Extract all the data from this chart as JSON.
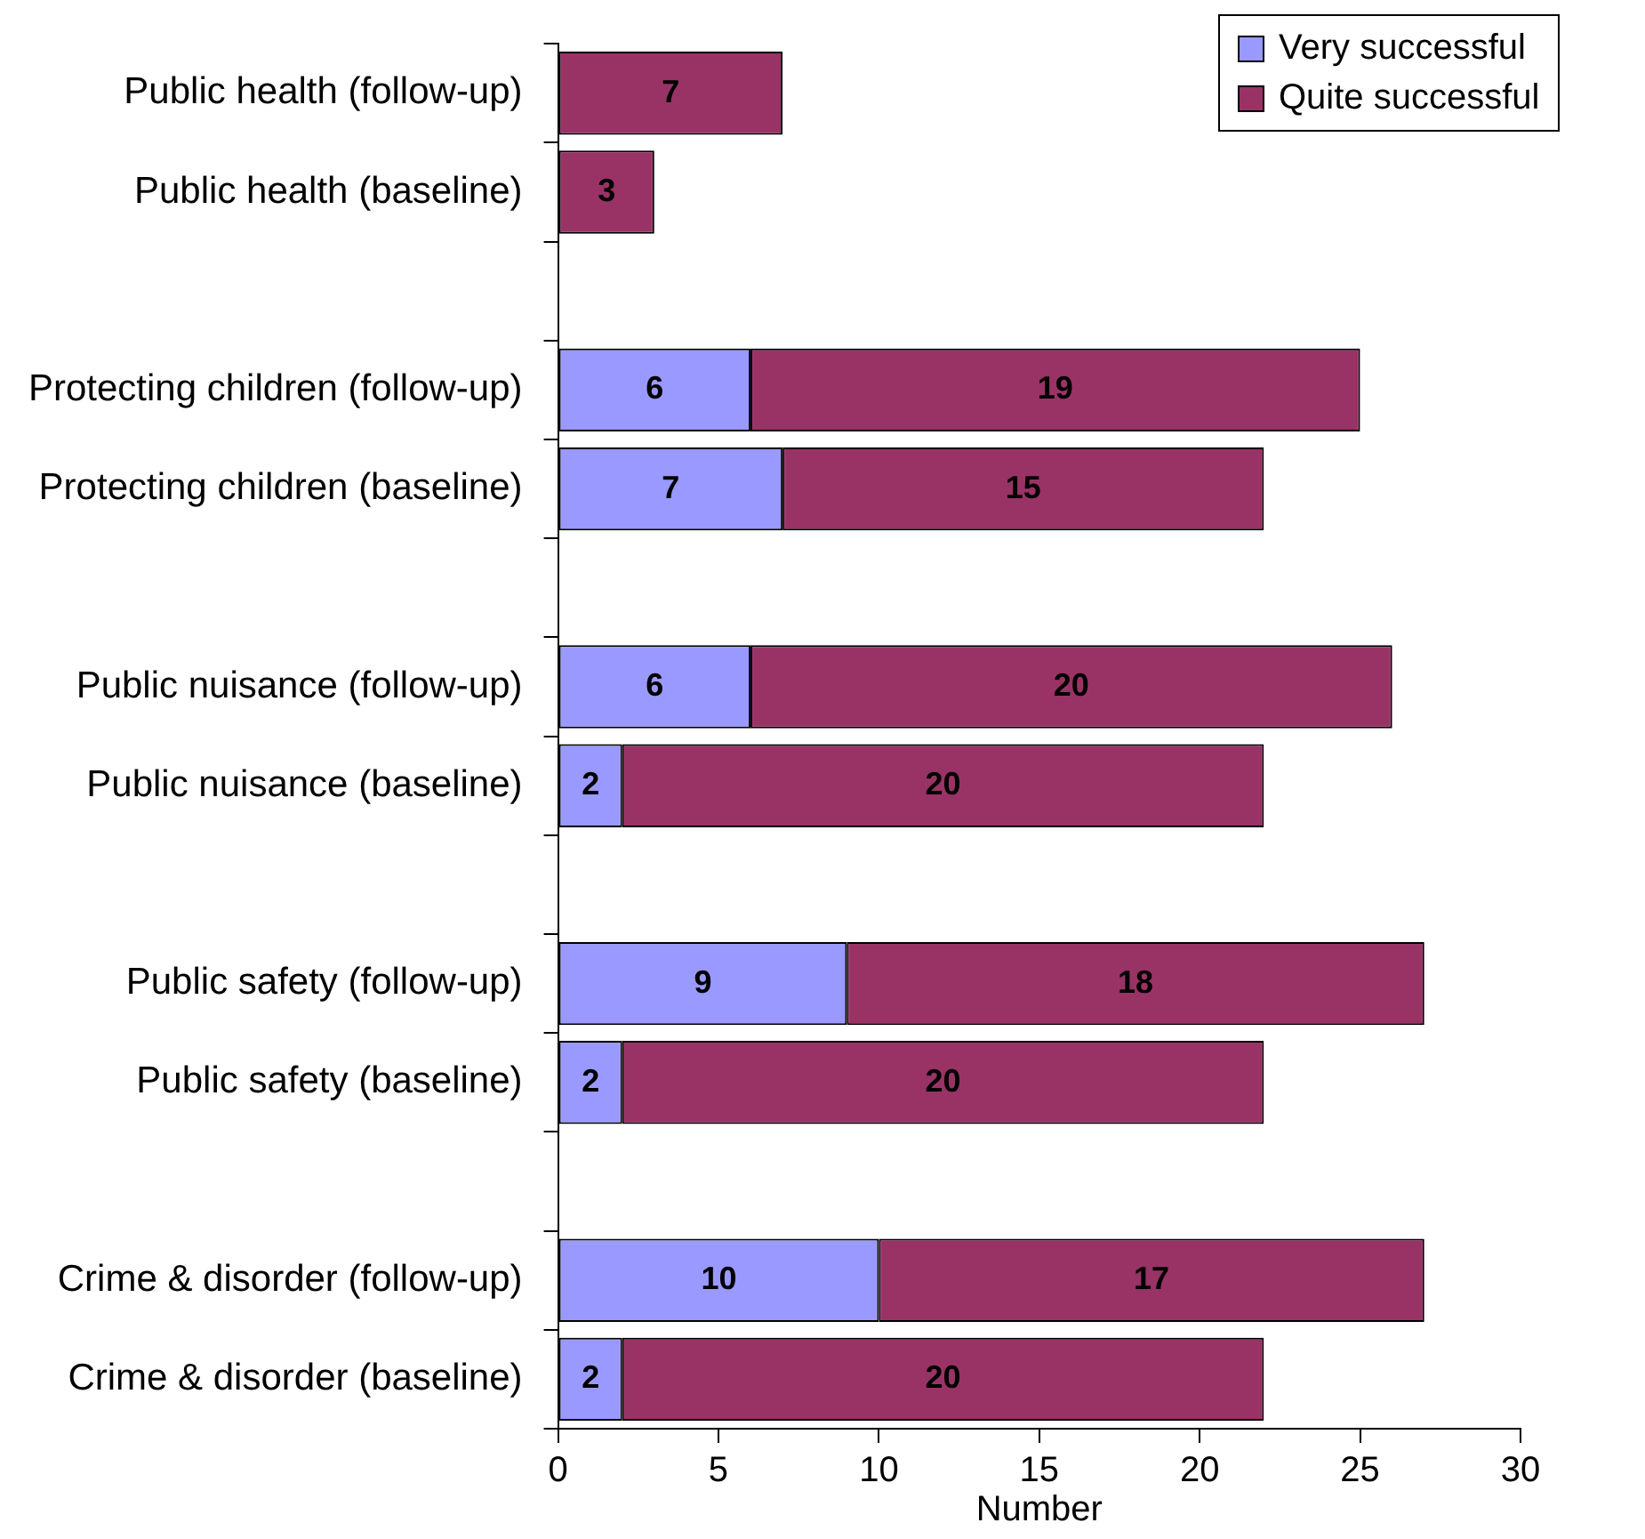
{
  "chart_data": {
    "type": "bar",
    "orientation": "horizontal",
    "stacked": true,
    "xlabel": "Number",
    "categories": [
      "Public health (follow-up)",
      "Public health (baseline)",
      null,
      "Protecting children (follow-up)",
      "Protecting children (baseline)",
      null,
      "Public nuisance (follow-up)",
      "Public nuisance (baseline)",
      null,
      "Public safety (follow-up)",
      "Public safety (baseline)",
      null,
      "Crime & disorder (follow-up)",
      "Crime & disorder (baseline)"
    ],
    "series": [
      {
        "name": "Very successful",
        "color": "#9999ff",
        "values": [
          null,
          null,
          null,
          6,
          7,
          null,
          6,
          2,
          null,
          9,
          2,
          null,
          10,
          2
        ]
      },
      {
        "name": "Quite successful",
        "color": "#993366",
        "values": [
          7,
          3,
          null,
          19,
          15,
          null,
          20,
          20,
          null,
          18,
          20,
          null,
          17,
          20
        ]
      }
    ],
    "xlim": [
      0,
      30
    ],
    "xticks": [
      0,
      5,
      10,
      15,
      20,
      25,
      30
    ],
    "grid": false,
    "legend": "top right",
    "data_labels": true
  }
}
